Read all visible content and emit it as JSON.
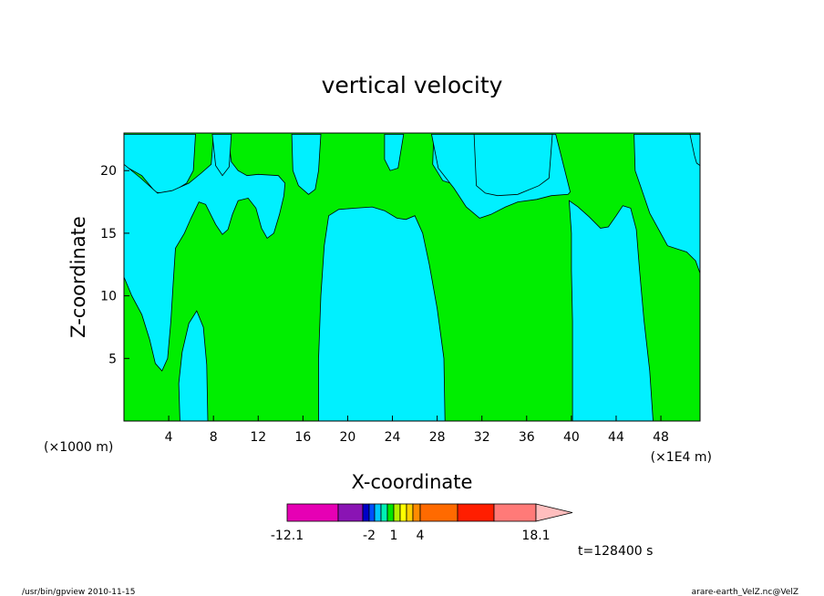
{
  "chart_data": {
    "type": "heatmap",
    "title": "vertical velocity",
    "xlabel": "X-coordinate",
    "ylabel": "Z-coordinate",
    "x_unit_left": "(×1000 m)",
    "x_unit_right": "(×1E4 m)",
    "xlim": [
      0,
      51.5
    ],
    "ylim": [
      0,
      23
    ],
    "x_ticks": [
      4,
      8,
      12,
      16,
      20,
      24,
      28,
      32,
      36,
      40,
      44,
      48
    ],
    "y_ticks": [
      5,
      10,
      15,
      20
    ],
    "fill_colors": {
      "negative": "#00f0ff",
      "positive": "#00ee00"
    },
    "colorbar": {
      "colors": [
        "#e600b4",
        "#8a14b4",
        "#0000c8",
        "#0050ff",
        "#00c8ff",
        "#00f0b4",
        "#00e600",
        "#b4f000",
        "#ffff00",
        "#ffd000",
        "#ff8c00",
        "#ff6a00",
        "#ff1e00",
        "#ff7a78",
        "#ffbebe"
      ],
      "labels": [
        "-12.1",
        "-2",
        "1",
        "4",
        "18.1"
      ]
    },
    "time_label": "t=128400 s"
  },
  "footer": {
    "left": "/usr/bin/gpview   2010-11-15",
    "right": "arare-earth_VelZ.nc@VelZ"
  }
}
